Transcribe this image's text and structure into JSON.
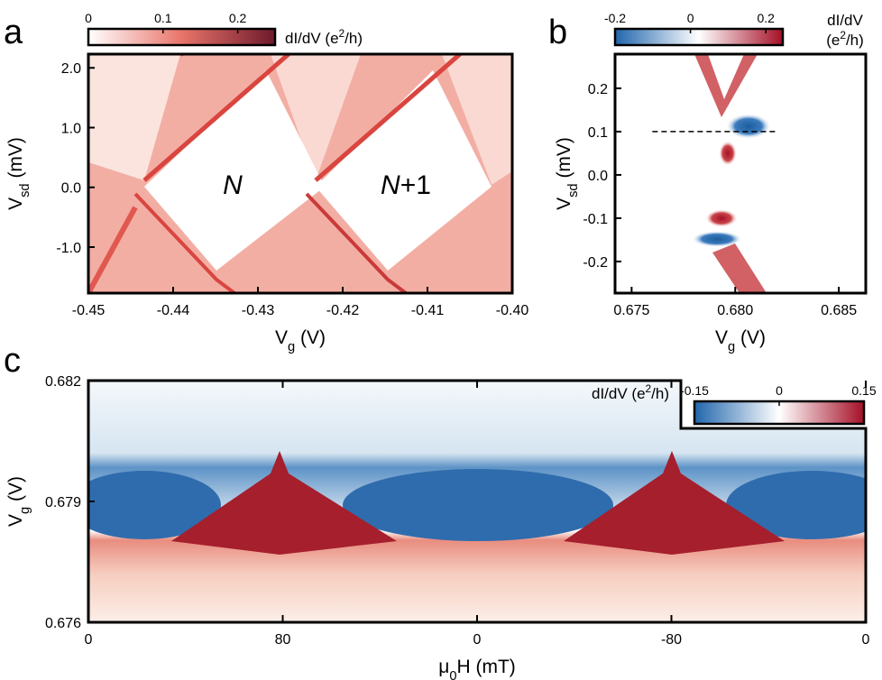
{
  "chart_data": [
    {
      "type": "heatmap",
      "panel_label": "a",
      "xlabel": [
        "V",
        "g",
        " (V)"
      ],
      "ylabel": [
        "V",
        "sd",
        " (mV)"
      ],
      "xlim": [
        -0.45,
        -0.4
      ],
      "xticks": [
        -0.45,
        -0.44,
        -0.43,
        -0.42,
        -0.41,
        {
          "value": -0.4,
          "label": "-0.40"
        }
      ],
      "ylim": [
        -1.77,
        2.23
      ],
      "yticks": [
        {
          "value": 2,
          "label": "2.0"
        },
        {
          "value": 1,
          "label": "1.0"
        },
        {
          "value": 0,
          "label": "0.0"
        },
        {
          "value": -1,
          "label": "-1.0"
        }
      ],
      "colorbar": {
        "label": [
          "dI/dV (e",
          "2",
          "/h)"
        ],
        "lim": [
          0,
          0.25
        ],
        "ticks": [
          0,
          0.1,
          0.2
        ],
        "colors": [
          "#ffffff",
          "#e8746a",
          "#6e1a2c"
        ]
      },
      "annotations": [
        [
          "N"
        ],
        [
          "N",
          "+1"
        ]
      ]
    },
    {
      "type": "heatmap",
      "panel_label": "b",
      "xlabel": [
        "V",
        "g",
        " (V)"
      ],
      "ylabel": [
        "V",
        "sd",
        " (mV)"
      ],
      "xlim": [
        0.6742,
        0.6863
      ],
      "xticks": [
        0.675,
        {
          "value": 0.68,
          "label": "0.680"
        },
        0.685
      ],
      "ylim": [
        -0.273,
        0.279
      ],
      "yticks": [
        0.2,
        0.1,
        {
          "value": 0,
          "label": "0.0"
        },
        -0.1,
        -0.2
      ],
      "colorbar": {
        "label": [
          "dI/dV",
          "(e",
          "2",
          "/h)"
        ],
        "lim": [
          -0.2,
          0.245
        ],
        "ticks": [
          -0.2,
          0,
          0.2
        ],
        "colors": [
          "#2166ac",
          "#ffffff",
          "#a50f26"
        ]
      },
      "cut_line": {
        "y": 0.1,
        "x": [
          0.676,
          0.682
        ]
      }
    },
    {
      "type": "heatmap",
      "panel_label": "c",
      "xlabel": [
        "μ",
        "0",
        "H (mT)"
      ],
      "ylabel": [
        "V",
        "g",
        " (V)"
      ],
      "x_sweep_ticks": [
        0,
        80,
        0,
        -80,
        0
      ],
      "ylim": [
        0.676,
        0.682
      ],
      "yticks": [
        0.682,
        0.679,
        0.676
      ],
      "colorbar": {
        "label": [
          "dI/dV (e",
          "2",
          "/h)"
        ],
        "lim": [
          -0.15,
          0.15
        ],
        "ticks": [
          -0.15,
          0,
          0.15
        ],
        "colors": [
          "#2166ac",
          "#ffffff",
          "#a50f26"
        ]
      }
    }
  ]
}
